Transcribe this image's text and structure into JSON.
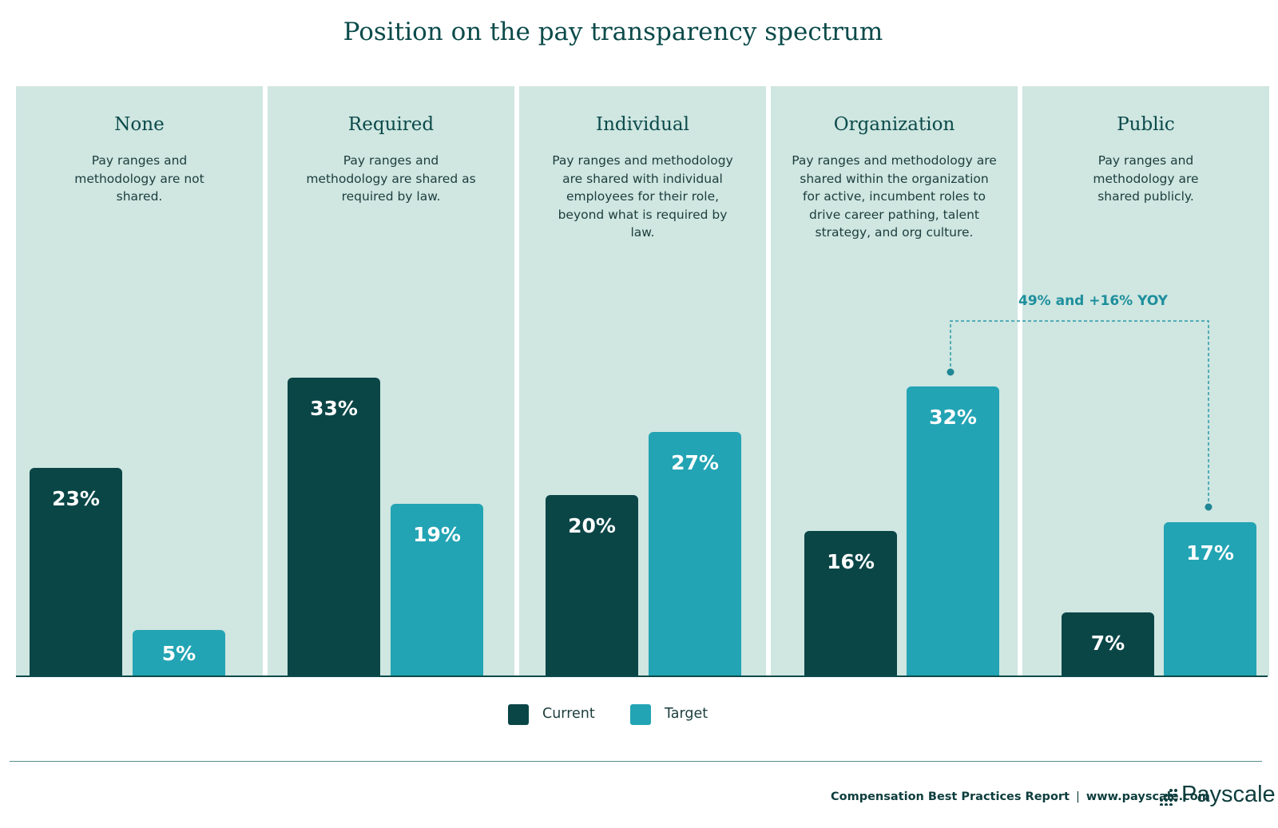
{
  "title": "Position on the pay transparency spectrum",
  "chart_data": {
    "type": "bar",
    "title": "Position on the pay transparency spectrum",
    "categories": [
      "None",
      "Required",
      "Individual",
      "Organization",
      "Public"
    ],
    "descriptions": [
      "Pay ranges and methodology are not shared.",
      "Pay ranges and methodology are shared as required by law.",
      "Pay ranges and methodology are shared with individual employees for their role, beyond what is required by law.",
      "Pay ranges and methodology are shared within the organization for active, incumbent roles to drive career pathing, talent strategy, and org culture.",
      "Pay ranges and methodology are shared publicly."
    ],
    "series": [
      {
        "name": "Current",
        "values": [
          23,
          33,
          20,
          16,
          7
        ],
        "labels": [
          "23%",
          "33%",
          "20%",
          "16%",
          "7%"
        ],
        "color": "#0b4647"
      },
      {
        "name": "Target",
        "values": [
          5,
          19,
          27,
          32,
          17
        ],
        "labels": [
          "5%",
          "19%",
          "27%",
          "32%",
          "17%"
        ],
        "color": "#22a4b4"
      }
    ],
    "ylim": [
      0,
      46
    ],
    "grid": false,
    "legend": "bottom-center",
    "annotation": "49% and +16% YOY"
  },
  "legend": {
    "current": "Current",
    "target": "Target"
  },
  "footer": {
    "report": "Compensation Best Practices Report",
    "separator": "|",
    "url": "www.payscale.com",
    "logo": "Payscale"
  },
  "colors": {
    "panel_bg": "#cfe6e1",
    "current": "#0b4647",
    "target": "#22a4b4",
    "text": "#0b4a4a"
  }
}
